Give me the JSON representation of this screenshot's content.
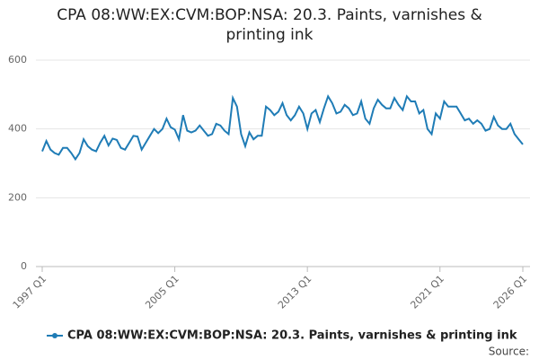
{
  "chart_data": {
    "type": "line",
    "title": "CPA 08:WW:EX:CVM:BOP:NSA: 20.3. Paints, varnishes & printing ink",
    "source": "Source:",
    "categories": [
      "1997 Q1",
      null,
      null,
      null,
      null,
      null,
      null,
      null,
      null,
      null,
      null,
      null,
      null,
      null,
      null,
      null,
      null,
      null,
      null,
      null,
      null,
      null,
      null,
      null,
      null,
      null,
      null,
      null,
      null,
      null,
      null,
      null,
      "2005 Q1",
      null,
      null,
      null,
      null,
      null,
      null,
      null,
      null,
      null,
      null,
      null,
      null,
      null,
      null,
      null,
      null,
      null,
      null,
      null,
      null,
      null,
      null,
      null,
      null,
      null,
      null,
      null,
      null,
      null,
      null,
      null,
      "2013 Q1",
      null,
      null,
      null,
      null,
      null,
      null,
      null,
      null,
      null,
      null,
      null,
      null,
      null,
      null,
      null,
      null,
      null,
      null,
      null,
      null,
      null,
      null,
      null,
      null,
      null,
      null,
      null,
      null,
      null,
      null,
      null,
      "2021 Q1",
      null,
      null,
      null,
      null,
      null,
      null,
      null,
      null,
      null,
      null,
      null,
      null,
      null,
      null,
      null,
      null,
      null,
      null,
      null,
      "2026 Q1"
    ],
    "series": [
      {
        "name": "CPA 08:WW:EX:CVM:BOP:NSA: 20.3. Paints, varnishes & printing ink",
        "color": "#1f7cb6",
        "values": [
          335,
          365,
          340,
          330,
          325,
          345,
          345,
          330,
          312,
          330,
          370,
          350,
          340,
          335,
          360,
          380,
          352,
          372,
          368,
          345,
          340,
          360,
          380,
          378,
          340,
          360,
          380,
          400,
          388,
          400,
          430,
          405,
          398,
          370,
          440,
          395,
          390,
          395,
          410,
          395,
          380,
          385,
          415,
          410,
          395,
          385,
          490,
          465,
          385,
          350,
          390,
          370,
          380,
          380,
          465,
          455,
          440,
          450,
          475,
          440,
          425,
          440,
          465,
          445,
          400,
          445,
          455,
          420,
          460,
          495,
          475,
          445,
          450,
          470,
          460,
          440,
          445,
          480,
          430,
          415,
          460,
          485,
          470,
          460,
          460,
          490,
          470,
          455,
          495,
          480,
          480,
          445,
          455,
          400,
          385,
          445,
          430,
          480,
          465,
          465,
          465,
          445,
          425,
          430,
          415,
          425,
          415,
          395,
          400,
          435,
          410,
          400,
          400,
          415,
          385,
          370,
          355
        ]
      }
    ],
    "ylim": [
      0,
      600
    ],
    "yticks": [
      0,
      200,
      400,
      600
    ],
    "grid": true
  }
}
